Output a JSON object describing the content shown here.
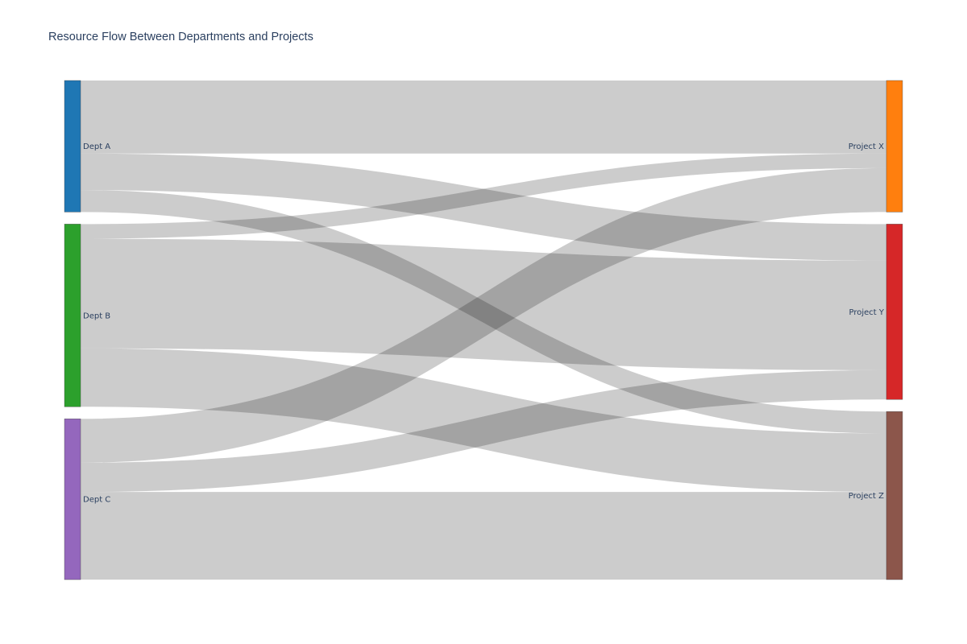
{
  "chart_data": {
    "type": "sankey",
    "title": "Resource Flow Between Departments and Projects",
    "nodes": [
      {
        "name": "Dept A",
        "color": "#1f77b4"
      },
      {
        "name": "Dept B",
        "color": "#2ca02c"
      },
      {
        "name": "Dept C",
        "color": "#9467bd"
      },
      {
        "name": "Project X",
        "color": "#ff7f0e"
      },
      {
        "name": "Project Y",
        "color": "#d62728"
      },
      {
        "name": "Project Z",
        "color": "#8c564b"
      }
    ],
    "links": [
      {
        "source": "Dept A",
        "target": "Project X",
        "value": 50
      },
      {
        "source": "Dept A",
        "target": "Project Y",
        "value": 25
      },
      {
        "source": "Dept A",
        "target": "Project Z",
        "value": 15
      },
      {
        "source": "Dept B",
        "target": "Project X",
        "value": 10
      },
      {
        "source": "Dept B",
        "target": "Project Y",
        "value": 75
      },
      {
        "source": "Dept B",
        "target": "Project Z",
        "value": 40
      },
      {
        "source": "Dept C",
        "target": "Project X",
        "value": 30
      },
      {
        "source": "Dept C",
        "target": "Project Y",
        "value": 20
      },
      {
        "source": "Dept C",
        "target": "Project Z",
        "value": 60
      }
    ]
  }
}
